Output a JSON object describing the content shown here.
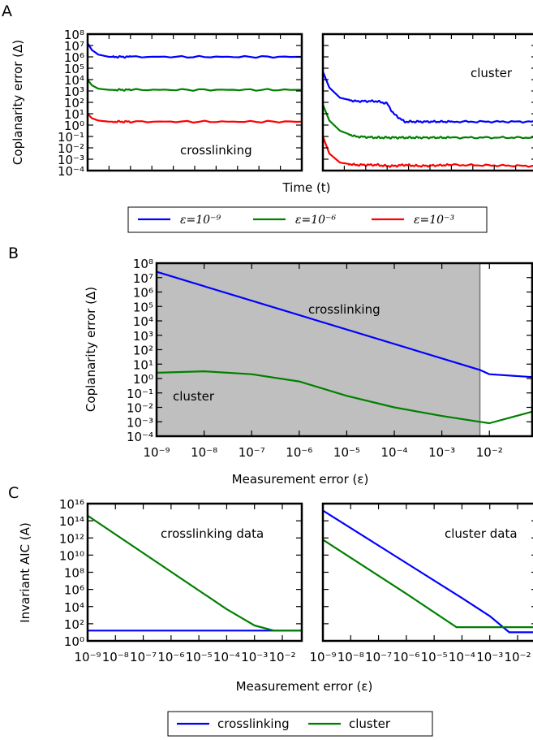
{
  "colors": {
    "blue": "#0000ff",
    "green": "#008000",
    "red": "#ff0000",
    "shade": "#bfbfbf"
  },
  "panels": {
    "a": "A",
    "b": "B",
    "c": "C"
  },
  "legend_a": [
    {
      "label": "ε=10⁻⁹",
      "color": "#0000ff"
    },
    {
      "label": "ε=10⁻⁶",
      "color": "#008000"
    },
    {
      "label": "ε=10⁻³",
      "color": "#ff0000"
    }
  ],
  "legend_c": [
    {
      "label": "crosslinking",
      "color": "#0000ff"
    },
    {
      "label": "cluster",
      "color": "#008000"
    }
  ],
  "chart_data": [
    {
      "id": "A-left",
      "type": "line",
      "ylabel": "Coplanarity error (Δ)",
      "xlabel": "Time (t)",
      "yscale": "log",
      "ylim_exp": [
        -4,
        8
      ],
      "yticks": [
        "10⁸",
        "10⁷",
        "10⁶",
        "10⁵",
        "10⁴",
        "10³",
        "10²",
        "10¹",
        "10⁰",
        "10⁻¹",
        "10⁻²",
        "10⁻³",
        "10⁻⁴"
      ],
      "annotation": "crosslinking",
      "x": [
        0,
        0.02,
        0.05,
        0.1,
        0.2,
        1
      ],
      "series": [
        {
          "color": "#0000ff",
          "log_values": [
            7.2,
            6.6,
            6.2,
            6.0,
            6.0,
            6.0
          ]
        },
        {
          "color": "#008000",
          "log_values": [
            4.0,
            3.5,
            3.2,
            3.1,
            3.1,
            3.1
          ]
        },
        {
          "color": "#ff0000",
          "log_values": [
            1.0,
            0.6,
            0.4,
            0.3,
            0.3,
            0.3
          ]
        }
      ]
    },
    {
      "id": "A-right",
      "type": "line",
      "yscale": "log",
      "ylim_exp": [
        -4,
        8
      ],
      "annotation": "cluster",
      "x": [
        0,
        0.03,
        0.08,
        0.15,
        0.25,
        0.3,
        0.33,
        0.38,
        0.45,
        0.6,
        1
      ],
      "series": [
        {
          "color": "#0000ff",
          "log_values": [
            4.7,
            3.3,
            2.4,
            2.1,
            2.1,
            1.9,
            1.0,
            0.3,
            0.3,
            0.3,
            0.3
          ]
        },
        {
          "color": "#008000",
          "log_values": [
            1.8,
            0.4,
            -0.5,
            -1.0,
            -1.1,
            -1.1,
            -1.1,
            -1.1,
            -1.1,
            -1.1,
            -1.1
          ]
        },
        {
          "color": "#ff0000",
          "log_values": [
            -1.0,
            -2.5,
            -3.3,
            -3.5,
            -3.5,
            -3.6,
            -3.6,
            -3.5,
            -3.6,
            -3.5,
            -3.6
          ]
        }
      ]
    },
    {
      "id": "B",
      "type": "line",
      "ylabel": "Coplanarity error (Δ)",
      "xlabel": "Measurement error (ε)",
      "xscale": "log",
      "yscale": "log",
      "xlim_exp": [
        -9,
        -1.1
      ],
      "ylim_exp": [
        -4,
        8
      ],
      "xticks": [
        "10⁻⁹",
        "10⁻⁸",
        "10⁻⁷",
        "10⁻⁶",
        "10⁻⁵",
        "10⁻⁴",
        "10⁻³",
        "10⁻²"
      ],
      "yticks": [
        "10⁸",
        "10⁷",
        "10⁶",
        "10⁵",
        "10⁴",
        "10³",
        "10²",
        "10¹",
        "10⁰",
        "10⁻¹",
        "10⁻²",
        "10⁻³",
        "10⁻⁴"
      ],
      "shaded_region_exp": [
        -9,
        -2.2
      ],
      "annotations": [
        "crosslinking",
        "cluster"
      ],
      "series": [
        {
          "color": "#0000ff",
          "log_x": [
            -9,
            -2.2,
            -2.0,
            -1.1
          ],
          "log_values": [
            7.4,
            0.6,
            0.3,
            0.1
          ]
        },
        {
          "color": "#008000",
          "log_x": [
            -9,
            -8,
            -7,
            -6,
            -5,
            -4,
            -3,
            -2.2,
            -2.0,
            -1.1
          ],
          "log_values": [
            0.4,
            0.5,
            0.3,
            -0.2,
            -1.2,
            -2.0,
            -2.6,
            -3.0,
            -3.1,
            -2.3
          ]
        }
      ]
    },
    {
      "id": "C-left",
      "type": "line",
      "ylabel": "Invariant AIC (A)",
      "xlabel": "Measurement error (ε)",
      "xscale": "log",
      "yscale": "log",
      "xlim_exp": [
        -9,
        -1.3
      ],
      "ylim_exp": [
        0,
        16
      ],
      "xticks": [
        "10⁻⁹",
        "10⁻⁸",
        "10⁻⁷",
        "10⁻⁶",
        "10⁻⁵",
        "10⁻⁴",
        "10⁻³",
        "10⁻²"
      ],
      "yticks": [
        "10¹⁶",
        "10¹⁴",
        "10¹²",
        "10¹⁰",
        "10⁸",
        "10⁶",
        "10⁴",
        "10²",
        "10⁰"
      ],
      "annotation": "crosslinking data",
      "series": [
        {
          "color": "#0000ff",
          "log_x": [
            -9,
            -1.3
          ],
          "log_values": [
            1.2,
            1.2
          ]
        },
        {
          "color": "#008000",
          "log_x": [
            -9,
            -4,
            -3,
            -2.3,
            -1.3
          ],
          "log_values": [
            14.6,
            3.7,
            1.8,
            1.2,
            1.2
          ]
        }
      ]
    },
    {
      "id": "C-right",
      "type": "line",
      "xscale": "log",
      "yscale": "log",
      "xlim_exp": [
        -9,
        -1.3
      ],
      "ylim_exp": [
        0,
        16
      ],
      "xticks": [
        "10⁻⁹",
        "10⁻⁸",
        "10⁻⁷",
        "10⁻⁶",
        "10⁻⁵",
        "10⁻⁴",
        "10⁻³",
        "10⁻²"
      ],
      "annotation": "cluster data",
      "series": [
        {
          "color": "#0000ff",
          "log_x": [
            -9,
            -4,
            -3,
            -2.3,
            -2.0,
            -1.3
          ],
          "log_values": [
            15.2,
            5.0,
            2.9,
            1.0,
            1.0,
            1.0
          ]
        },
        {
          "color": "#008000",
          "log_x": [
            -9,
            -6,
            -4.2,
            -1.3
          ],
          "log_values": [
            11.8,
            5.5,
            1.6,
            1.6
          ]
        }
      ]
    }
  ]
}
